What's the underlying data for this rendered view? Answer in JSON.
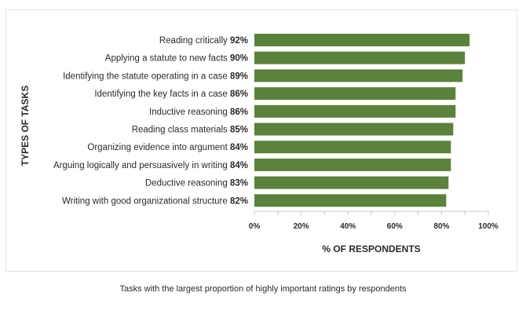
{
  "chart_data": {
    "type": "bar",
    "orientation": "horizontal",
    "categories": [
      "Reading critically",
      "Applying a statute to new facts",
      "Identifying the statute operating in a case",
      "Identifying the key facts in a case",
      "Inductive reasoning",
      "Reading class materials",
      "Organizing evidence into argument",
      "Arguing logically and persuasively in writing",
      "Deductive reasoning",
      "Writing with good organizational structure"
    ],
    "values": [
      92,
      90,
      89,
      86,
      86,
      85,
      84,
      84,
      83,
      82
    ],
    "value_labels": [
      "92%",
      "90%",
      "89%",
      "86%",
      "86%",
      "85%",
      "84%",
      "84%",
      "83%",
      "82%"
    ],
    "xlim": [
      0,
      100
    ],
    "x_ticks": [
      "0%",
      "20%",
      "40%",
      "60%",
      "80%",
      "100%"
    ],
    "xlabel": "% OF RESPONDENTS",
    "ylabel": "TYPES OF TASKS",
    "grid": false,
    "bar_color": "#5a823a"
  },
  "caption": "Tasks with the largest proportion of highly important ratings by respondents"
}
